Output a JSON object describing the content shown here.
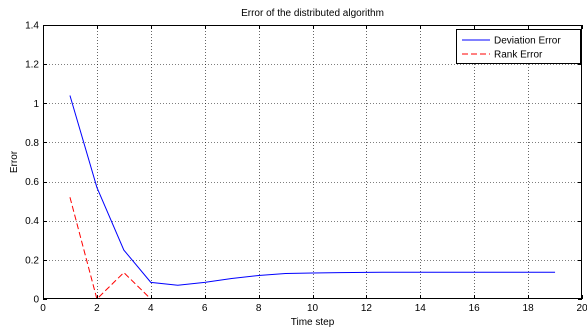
{
  "chart_data": {
    "type": "line",
    "title": "Error of the distributed algorithm",
    "xlabel": "Time step",
    "ylabel": "Error",
    "xlim": [
      0,
      20
    ],
    "ylim": [
      0,
      1.4
    ],
    "xticks": [
      0,
      2,
      4,
      6,
      8,
      10,
      12,
      14,
      16,
      18,
      20
    ],
    "yticks": [
      0,
      0.2,
      0.4,
      0.6,
      0.8,
      1,
      1.2,
      1.4
    ],
    "grid": true,
    "legend_position": "top-right",
    "series": [
      {
        "name": "Deviation Error",
        "color": "#0000ff",
        "style": "solid",
        "x": [
          1,
          2,
          3,
          4,
          5,
          6,
          7,
          8,
          9,
          10,
          11,
          12,
          13,
          14,
          15,
          16,
          17,
          18,
          19
        ],
        "y": [
          1.04,
          0.57,
          0.25,
          0.085,
          0.07,
          0.085,
          0.105,
          0.12,
          0.13,
          0.133,
          0.135,
          0.136,
          0.137,
          0.137,
          0.137,
          0.137,
          0.137,
          0.137,
          0.137
        ]
      },
      {
        "name": "Rank Error",
        "color": "#ff0000",
        "style": "dashed",
        "x": [
          1,
          2,
          3,
          4
        ],
        "y": [
          0.52,
          0.0,
          0.135,
          0.0
        ]
      }
    ]
  }
}
